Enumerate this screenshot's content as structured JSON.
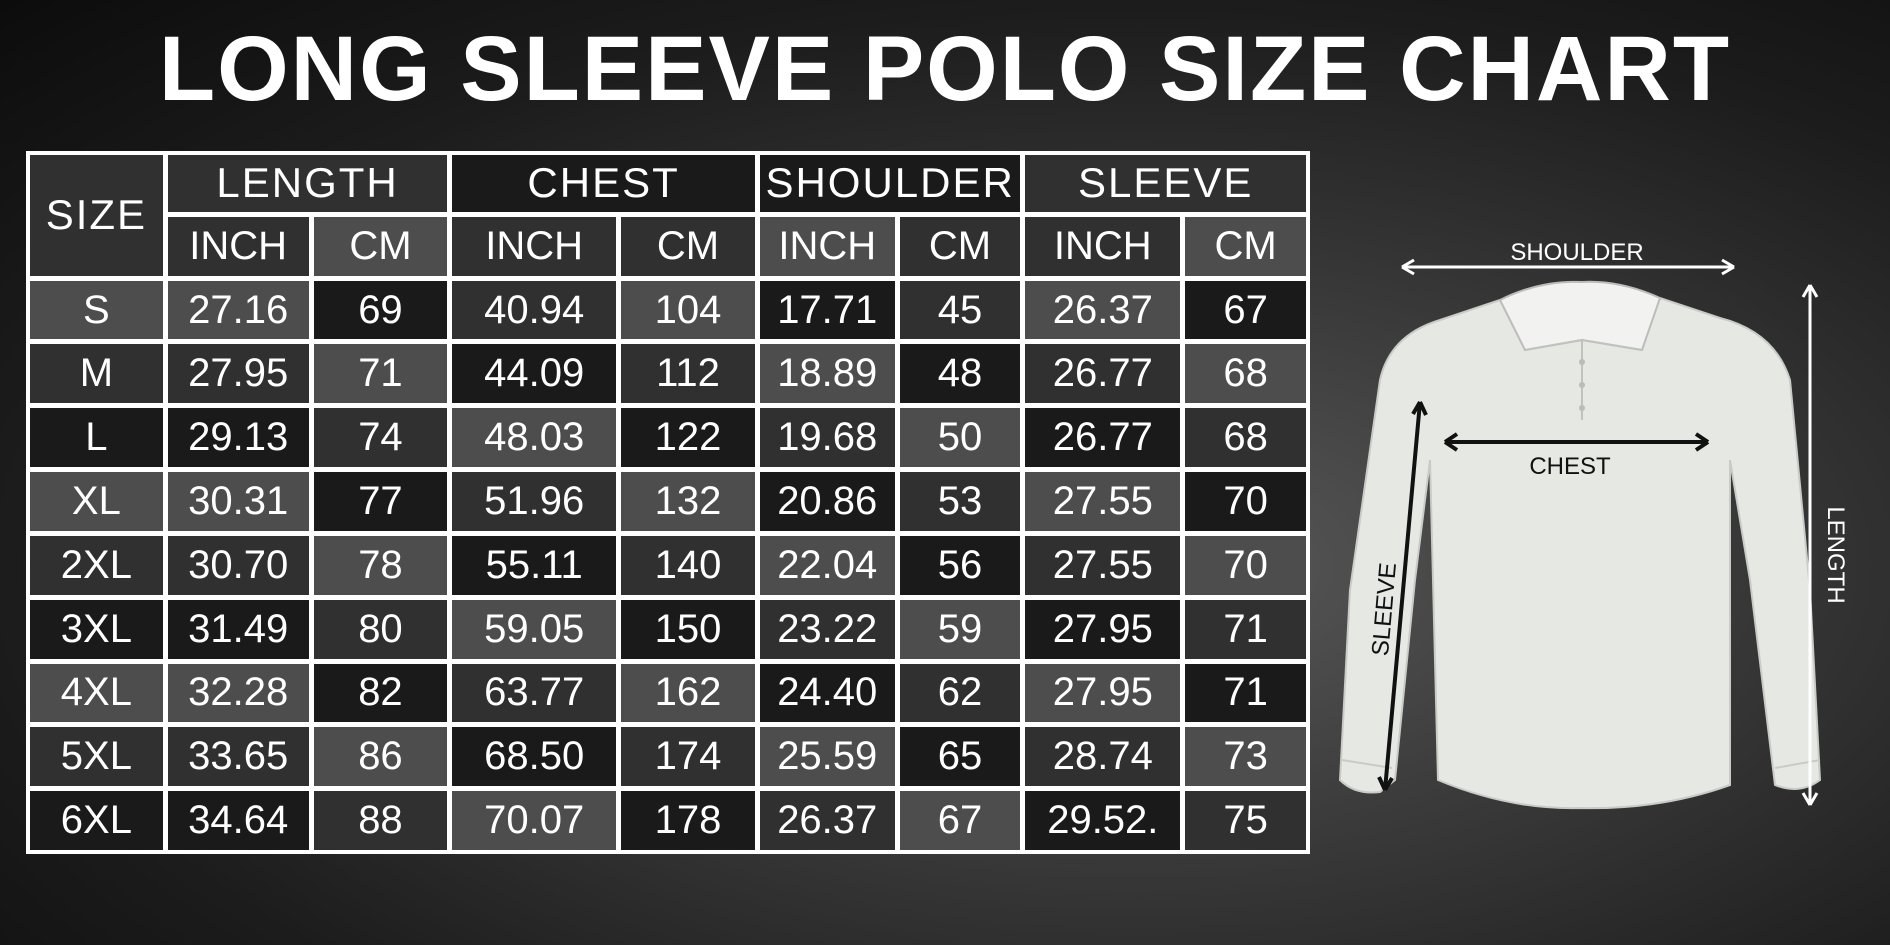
{
  "title": "LONG SLEEVE POLO SIZE CHART",
  "chart_data": {
    "type": "table",
    "title": "LONG SLEEVE POLO SIZE CHART",
    "size_header": "SIZE",
    "groups": [
      "LENGTH",
      "CHEST",
      "SHOULDER",
      "SLEEVE"
    ],
    "units": [
      "INCH",
      "CM"
    ],
    "rows": [
      {
        "size": "S",
        "values": [
          "27.16",
          "69",
          "40.94",
          "104",
          "17.71",
          "45",
          "26.37",
          "67"
        ]
      },
      {
        "size": "M",
        "values": [
          "27.95",
          "71",
          "44.09",
          "112",
          "18.89",
          "48",
          "26.77",
          "68"
        ]
      },
      {
        "size": "L",
        "values": [
          "29.13",
          "74",
          "48.03",
          "122",
          "19.68",
          "50",
          "26.77",
          "68"
        ]
      },
      {
        "size": "XL",
        "values": [
          "30.31",
          "77",
          "51.96",
          "132",
          "20.86",
          "53",
          "27.55",
          "70"
        ]
      },
      {
        "size": "2XL",
        "values": [
          "30.70",
          "78",
          "55.11",
          "140",
          "22.04",
          "56",
          "27.55",
          "70"
        ]
      },
      {
        "size": "3XL",
        "values": [
          "31.49",
          "80",
          "59.05",
          "150",
          "23.22",
          "59",
          "27.95",
          "71"
        ]
      },
      {
        "size": "4XL",
        "values": [
          "32.28",
          "82",
          "63.77",
          "162",
          "24.40",
          "62",
          "27.95",
          "71"
        ]
      },
      {
        "size": "5XL",
        "values": [
          "33.65",
          "86",
          "68.50",
          "174",
          "25.59",
          "65",
          "28.74",
          "73"
        ]
      },
      {
        "size": "6XL",
        "values": [
          "34.64",
          "88",
          "70.07",
          "178",
          "26.37",
          "67",
          "29.52.",
          "75"
        ]
      }
    ]
  },
  "diagram": {
    "shoulder": "SHOULDER",
    "chest": "CHEST",
    "sleeve": "SLEEVE",
    "length": "LENGTH"
  },
  "colors": {
    "background": "#1c1c1c",
    "text": "#ffffff",
    "grid": "#ffffff",
    "shirt": "#e6e8e4"
  }
}
